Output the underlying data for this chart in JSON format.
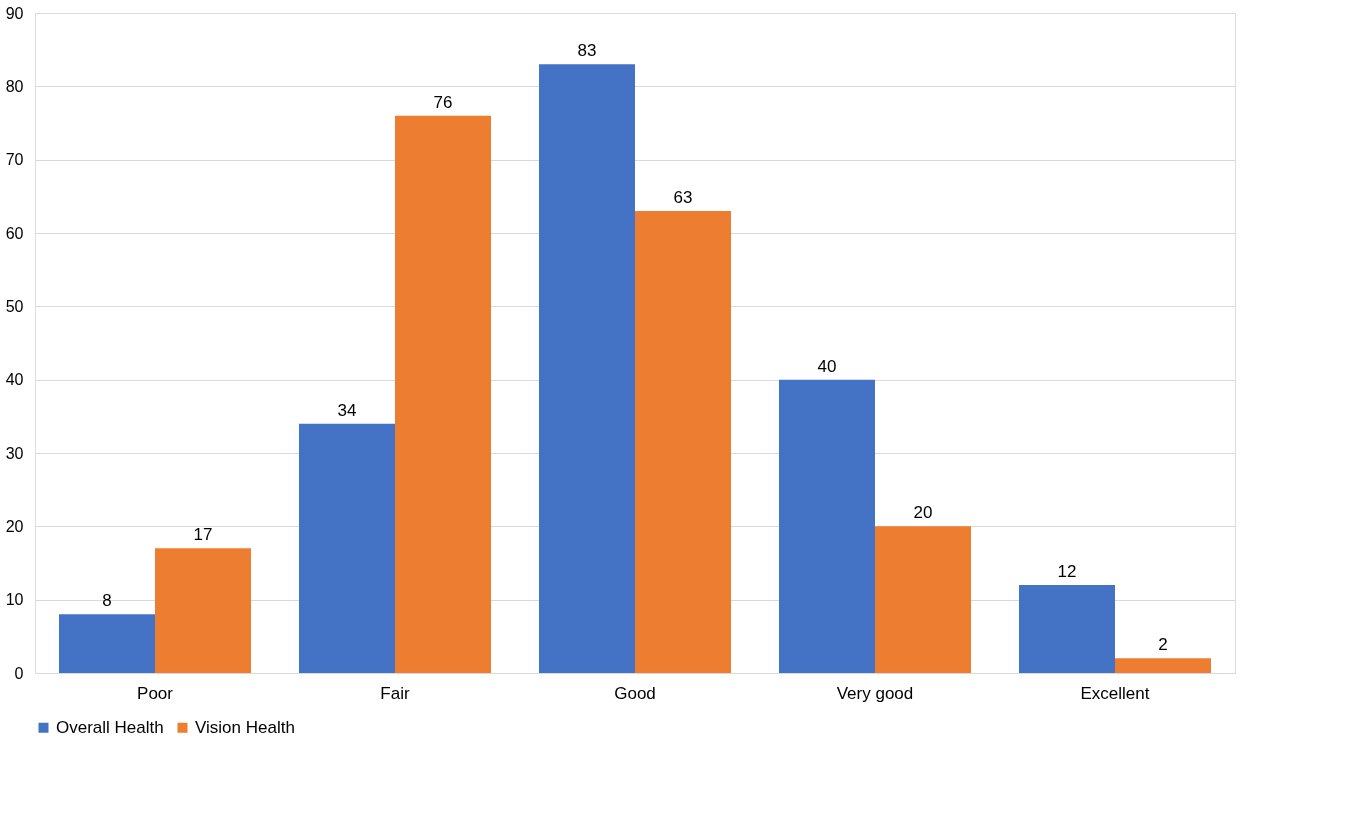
{
  "chart_data": {
    "type": "bar",
    "categories": [
      "Poor",
      "Fair",
      "Good",
      "Very good",
      "Excellent"
    ],
    "series": [
      {
        "name": "Overall Health",
        "color": "#4472c4",
        "values": [
          8,
          34,
          83,
          40,
          12
        ]
      },
      {
        "name": "Vision Health",
        "color": "#ed7d31",
        "values": [
          17,
          76,
          63,
          20,
          2
        ]
      }
    ],
    "ylim": [
      0,
      90
    ],
    "yticks": [
      0,
      10,
      20,
      30,
      40,
      50,
      60,
      70,
      80,
      90
    ],
    "grid": "y",
    "legend": "bottom",
    "data_labels": true
  }
}
